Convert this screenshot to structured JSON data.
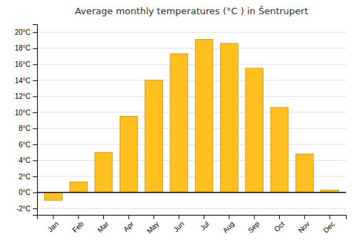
{
  "chart_data": {
    "type": "bar",
    "title": "Average monthly temperatures (°C ) in Šentrupert",
    "categories": [
      "Jan",
      "Feb",
      "Mar",
      "Apr",
      "May",
      "Jun",
      "Jul",
      "Aug",
      "Sep",
      "Oct",
      "Nov",
      "Dec"
    ],
    "values": [
      -1.0,
      1.3,
      5.0,
      9.5,
      14.0,
      17.3,
      19.1,
      18.6,
      15.5,
      10.6,
      4.8,
      0.3
    ],
    "color": "#FFC020",
    "ylim": [
      -2.8,
      21.0
    ],
    "yticks": [
      {
        "value": -2,
        "label": "-2°C"
      },
      {
        "value": 0,
        "label": "0°C"
      },
      {
        "value": 2,
        "label": "2°C"
      },
      {
        "value": 4,
        "label": "4°C"
      },
      {
        "value": 6,
        "label": "6°C"
      },
      {
        "value": 8,
        "label": "8°C"
      },
      {
        "value": 10,
        "label": "10°C"
      },
      {
        "value": 12,
        "label": "12°C"
      },
      {
        "value": 14,
        "label": "14°C"
      },
      {
        "value": 16,
        "label": "16°C"
      },
      {
        "value": 18,
        "label": "18°C"
      },
      {
        "value": 20,
        "label": "20°C"
      }
    ],
    "grid": true
  }
}
